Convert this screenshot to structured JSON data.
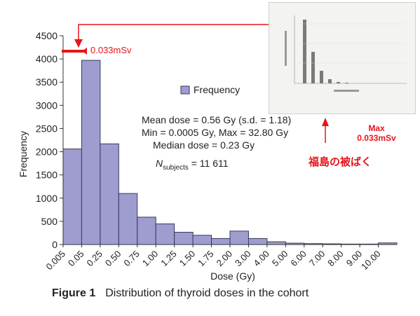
{
  "chart_data": {
    "type": "bar",
    "categories": [
      "0.005",
      "0.05",
      "0.25",
      "0.50",
      "0.75",
      "1.00",
      "1.25",
      "1.50",
      "1.75",
      "2.00",
      "3.00",
      "4.00",
      "5.00",
      "6.00",
      "7.00",
      "8.00",
      "9.00",
      "10.00"
    ],
    "values": [
      2060,
      3970,
      2170,
      1100,
      590,
      445,
      265,
      200,
      130,
      290,
      130,
      60,
      30,
      20,
      15,
      10,
      10,
      35
    ],
    "series": [
      {
        "name": "Frequency",
        "values": [
          2060,
          3970,
          2170,
          1100,
          590,
          445,
          265,
          200,
          130,
          290,
          130,
          60,
          30,
          20,
          15,
          10,
          10,
          35
        ]
      }
    ],
    "yticks": [
      "0",
      "500",
      "1000",
      "1500",
      "2000",
      "2500",
      "3000",
      "3500",
      "4000",
      "4500"
    ],
    "xlabel": "Dose (Gy)",
    "ylabel": "Frequency",
    "ylim": [
      0,
      4500
    ],
    "legend": "Frequency",
    "legend_position": "top-right",
    "grid": false,
    "annotations": {
      "line1": "Mean dose = 0.56 Gy (s.d. = 1.18)",
      "line2": "Min = 0.0005 Gy, Max = 32.80 Gy",
      "line3": "Median dose = 0.23 Gy",
      "n_main": "N",
      "n_sub": "subjects",
      "n_value": " = 11 611"
    },
    "colors": {
      "bar_fill": "#9f9ccf",
      "bar_stroke": "#3a3a5c",
      "marker": "#e8141b"
    }
  },
  "overlay": {
    "arrow_label": "0.033mSv",
    "inset_max_line1": "Max",
    "inset_max_line2": "0.033mSv",
    "inset_note": "福島の被ばく"
  },
  "caption": {
    "label": "Figure 1",
    "text": "Distribution of thyroid doses in the cohort"
  }
}
